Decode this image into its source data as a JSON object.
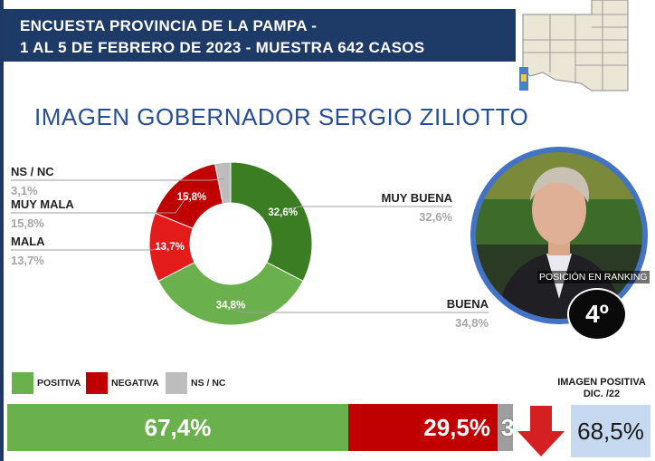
{
  "header": {
    "line1": "ENCUESTA PROVINCIA DE LA PAMPA -",
    "line2": "1 AL 5 DE FEBRERO DE 2023 - MUESTRA 642 CASOS"
  },
  "title": "IMAGEN GOBERNADOR  SERGIO ZILIOTTO",
  "ranking": {
    "caption": "POSICIÓN EN RANKING",
    "position": "4º"
  },
  "previous": {
    "title": "IMAGEN POSITIVA DIC. /22",
    "value": "68,5%"
  },
  "colors": {
    "header_bg": "#1e3a66",
    "title": "#274e9a",
    "muy_buena": "#3a7d22",
    "buena": "#6ab04c",
    "mala": "#e31b1b",
    "muy_mala": "#c00000",
    "nsnc": "#bdbdbd",
    "positiva": "#6ab04c",
    "negativa": "#c00000",
    "arrow": "#d42020",
    "prev_box": "#c6d9f1"
  },
  "chart_data": [
    {
      "type": "pie",
      "title": "IMAGEN GOBERNADOR  SERGIO ZILIOTTO",
      "donut": true,
      "slices": [
        {
          "label": "MUY BUENA",
          "value": 32.6,
          "text": "32,6%",
          "color": "#3a7d22"
        },
        {
          "label": "BUENA",
          "value": 34.8,
          "text": "34,8%",
          "color": "#6ab04c"
        },
        {
          "label": "MALA",
          "value": 13.7,
          "text": "13,7%",
          "color": "#e31b1b"
        },
        {
          "label": "MUY MALA",
          "value": 15.8,
          "text": "15,8%",
          "color": "#c00000"
        },
        {
          "label": "NS / NC",
          "value": 3.1,
          "text": "3,1%",
          "color": "#bdbdbd"
        }
      ]
    },
    {
      "type": "bar",
      "orientation": "horizontal",
      "stacked": true,
      "legend_position": "top-left",
      "series": [
        {
          "name": "POSITIVA",
          "value": 67.4,
          "text": "67,4%",
          "color": "#6ab04c"
        },
        {
          "name": "NEGATIVA",
          "value": 29.5,
          "text": "29,5%",
          "color": "#c00000"
        },
        {
          "name": "NS / NC",
          "value": 3.1,
          "text": "3,1%",
          "color": "#9e9e9e"
        }
      ]
    }
  ]
}
